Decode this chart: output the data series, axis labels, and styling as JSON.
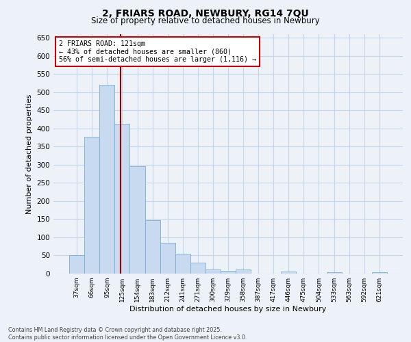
{
  "title_line1": "2, FRIARS ROAD, NEWBURY, RG14 7QU",
  "title_line2": "Size of property relative to detached houses in Newbury",
  "xlabel": "Distribution of detached houses by size in Newbury",
  "ylabel": "Number of detached properties",
  "categories": [
    "37sqm",
    "66sqm",
    "95sqm",
    "125sqm",
    "154sqm",
    "183sqm",
    "212sqm",
    "241sqm",
    "271sqm",
    "300sqm",
    "329sqm",
    "358sqm",
    "387sqm",
    "417sqm",
    "446sqm",
    "475sqm",
    "504sqm",
    "533sqm",
    "563sqm",
    "592sqm",
    "621sqm"
  ],
  "values": [
    50,
    378,
    521,
    413,
    296,
    147,
    85,
    54,
    30,
    11,
    8,
    11,
    0,
    0,
    5,
    0,
    0,
    3,
    0,
    0,
    4
  ],
  "bar_color": "#c8daf0",
  "bar_edge_color": "#7bafd4",
  "vline_color": "#990000",
  "annotation_text": "2 FRIARS ROAD: 121sqm\n← 43% of detached houses are smaller (860)\n56% of semi-detached houses are larger (1,116) →",
  "annotation_box_color": "#ffffff",
  "annotation_box_edge": "#cc0000",
  "ylim": [
    0,
    660
  ],
  "yticks": [
    0,
    50,
    100,
    150,
    200,
    250,
    300,
    350,
    400,
    450,
    500,
    550,
    600,
    650
  ],
  "footer_line1": "Contains HM Land Registry data © Crown copyright and database right 2025.",
  "footer_line2": "Contains public sector information licensed under the Open Government Licence v3.0.",
  "grid_color": "#c8d4e8",
  "background_color": "#edf2f8"
}
